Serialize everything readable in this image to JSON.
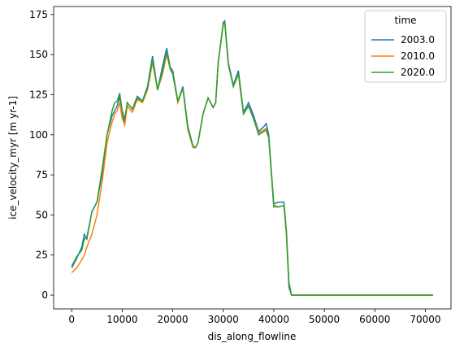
{
  "chart_data": {
    "type": "line",
    "x_label": "dis_along_flowline",
    "y_label": "ice_velocity_myr [m yr-1]",
    "legend_title": "time",
    "legend_position": "upper right",
    "x": [
      0,
      1000,
      2000,
      2500,
      3000,
      4000,
      5000,
      6000,
      7000,
      8000,
      8500,
      9000,
      9500,
      10000,
      10500,
      11000,
      12000,
      13000,
      14000,
      15000,
      16000,
      17000,
      18000,
      18800,
      19500,
      20000,
      21000,
      22000,
      23000,
      24000,
      24500,
      25000,
      26000,
      27000,
      28000,
      28500,
      29000,
      30000,
      30300,
      31000,
      32000,
      33000,
      34000,
      35000,
      36000,
      37000,
      38000,
      38500,
      39000,
      40000,
      41000,
      42000,
      42500,
      43000,
      43500,
      71500
    ],
    "series": [
      {
        "name": "2003.0",
        "color": "#1f77b4",
        "values": [
          17,
          23,
          30,
          38,
          35,
          52,
          58,
          75,
          100,
          112,
          115,
          118,
          124,
          112,
          108,
          120,
          116,
          124,
          121,
          130,
          149,
          128,
          143,
          154,
          142,
          140,
          121,
          130,
          105,
          93,
          92,
          95,
          113,
          123,
          117,
          120,
          145,
          170,
          171,
          145,
          131,
          140,
          114,
          120,
          112,
          102,
          105,
          107,
          100,
          57,
          58,
          58,
          40,
          8,
          0,
          0
        ]
      },
      {
        "name": "2010.0",
        "color": "#ff7f0e",
        "values": [
          14,
          17,
          22,
          25,
          30,
          38,
          50,
          70,
          95,
          108,
          113,
          115,
          120,
          110,
          106,
          118,
          114,
          122,
          120,
          128,
          145,
          128,
          138,
          150,
          141,
          138,
          120,
          129,
          103,
          92,
          92,
          95,
          113,
          123,
          117,
          120,
          145,
          169,
          170,
          144,
          130,
          138,
          113,
          118,
          110,
          101,
          103,
          104,
          98,
          56,
          55,
          56,
          40,
          5,
          0,
          0
        ]
      },
      {
        "name": "2020.0",
        "color": "#2ca02c",
        "values": [
          18,
          24,
          28,
          35,
          36,
          52,
          58,
          78,
          100,
          115,
          120,
          121,
          126,
          115,
          110,
          120,
          116,
          123,
          121,
          129,
          147,
          128,
          140,
          152,
          141,
          138,
          121,
          129,
          104,
          93,
          92,
          95,
          113,
          123,
          117,
          120,
          145,
          169,
          170,
          144,
          130,
          138,
          113,
          118,
          110,
          100,
          102,
          103,
          98,
          55,
          55,
          56,
          38,
          5,
          0,
          0
        ]
      }
    ],
    "xlim": [
      -3575,
      75075
    ],
    "ylim": [
      -8.6,
      180
    ],
    "xticks": [
      0,
      10000,
      20000,
      30000,
      40000,
      50000,
      60000,
      70000
    ],
    "yticks": [
      0,
      25,
      50,
      75,
      100,
      125,
      150,
      175
    ]
  }
}
